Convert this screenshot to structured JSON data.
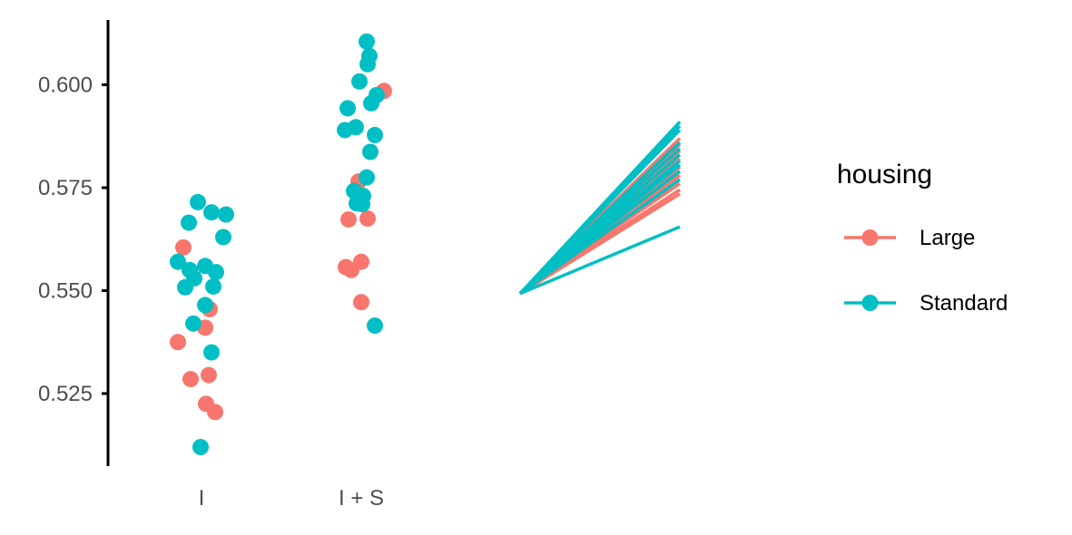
{
  "chart_data": {
    "type": "scatter",
    "categories": [
      "I",
      "I + S"
    ],
    "y_ticks": [
      "0.525",
      "0.550",
      "0.575",
      "0.600"
    ],
    "ylim": [
      0.508,
      0.615
    ],
    "grid": false,
    "legend_position": "right",
    "legend": {
      "title": "housing",
      "entries": [
        "Large",
        "Standard"
      ]
    },
    "colors": {
      "Large": "#F8766D",
      "Standard": "#00BFC4"
    },
    "points": [
      {
        "group": "I",
        "housing": "Large",
        "value": 0.5605
      },
      {
        "group": "I",
        "housing": "Large",
        "value": 0.5455
      },
      {
        "group": "I",
        "housing": "Large",
        "value": 0.541
      },
      {
        "group": "I",
        "housing": "Large",
        "value": 0.5375
      },
      {
        "group": "I",
        "housing": "Large",
        "value": 0.5295
      },
      {
        "group": "I",
        "housing": "Large",
        "value": 0.5285
      },
      {
        "group": "I",
        "housing": "Large",
        "value": 0.5225
      },
      {
        "group": "I",
        "housing": "Large",
        "value": 0.5205
      },
      {
        "group": "I",
        "housing": "Standard",
        "value": 0.5715
      },
      {
        "group": "I",
        "housing": "Standard",
        "value": 0.569
      },
      {
        "group": "I",
        "housing": "Standard",
        "value": 0.5685
      },
      {
        "group": "I",
        "housing": "Standard",
        "value": 0.5665
      },
      {
        "group": "I",
        "housing": "Standard",
        "value": 0.563
      },
      {
        "group": "I",
        "housing": "Standard",
        "value": 0.557
      },
      {
        "group": "I",
        "housing": "Standard",
        "value": 0.556
      },
      {
        "group": "I",
        "housing": "Standard",
        "value": 0.555
      },
      {
        "group": "I",
        "housing": "Standard",
        "value": 0.5545
      },
      {
        "group": "I",
        "housing": "Standard",
        "value": 0.553
      },
      {
        "group": "I",
        "housing": "Standard",
        "value": 0.551
      },
      {
        "group": "I",
        "housing": "Standard",
        "value": 0.5508
      },
      {
        "group": "I",
        "housing": "Standard",
        "value": 0.5465
      },
      {
        "group": "I",
        "housing": "Standard",
        "value": 0.542
      },
      {
        "group": "I",
        "housing": "Standard",
        "value": 0.535
      },
      {
        "group": "I",
        "housing": "Standard",
        "value": 0.512
      },
      {
        "group": "I + S",
        "housing": "Large",
        "value": 0.5985
      },
      {
        "group": "I + S",
        "housing": "Large",
        "value": 0.5765
      },
      {
        "group": "I + S",
        "housing": "Large",
        "value": 0.5675
      },
      {
        "group": "I + S",
        "housing": "Large",
        "value": 0.5673
      },
      {
        "group": "I + S",
        "housing": "Large",
        "value": 0.557
      },
      {
        "group": "I + S",
        "housing": "Large",
        "value": 0.5557
      },
      {
        "group": "I + S",
        "housing": "Large",
        "value": 0.555
      },
      {
        "group": "I + S",
        "housing": "Large",
        "value": 0.5472
      },
      {
        "group": "I + S",
        "housing": "Standard",
        "value": 0.6105
      },
      {
        "group": "I + S",
        "housing": "Standard",
        "value": 0.607
      },
      {
        "group": "I + S",
        "housing": "Standard",
        "value": 0.605
      },
      {
        "group": "I + S",
        "housing": "Standard",
        "value": 0.6008
      },
      {
        "group": "I + S",
        "housing": "Standard",
        "value": 0.5975
      },
      {
        "group": "I + S",
        "housing": "Standard",
        "value": 0.5955
      },
      {
        "group": "I + S",
        "housing": "Standard",
        "value": 0.5943
      },
      {
        "group": "I + S",
        "housing": "Standard",
        "value": 0.5897
      },
      {
        "group": "I + S",
        "housing": "Standard",
        "value": 0.589
      },
      {
        "group": "I + S",
        "housing": "Standard",
        "value": 0.5878
      },
      {
        "group": "I + S",
        "housing": "Standard",
        "value": 0.5837
      },
      {
        "group": "I + S",
        "housing": "Standard",
        "value": 0.5775
      },
      {
        "group": "I + S",
        "housing": "Standard",
        "value": 0.5742
      },
      {
        "group": "I + S",
        "housing": "Standard",
        "value": 0.573
      },
      {
        "group": "I + S",
        "housing": "Standard",
        "value": 0.5712
      },
      {
        "group": "I + S",
        "housing": "Standard",
        "value": 0.571
      },
      {
        "group": "I + S",
        "housing": "Standard",
        "value": 0.5415
      }
    ],
    "slope_lines": {
      "start_value": 0.5493,
      "lines": [
        {
          "housing": "Large",
          "end": 0.587
        },
        {
          "housing": "Large",
          "end": 0.5855
        },
        {
          "housing": "Large",
          "end": 0.584
        },
        {
          "housing": "Large",
          "end": 0.582
        },
        {
          "housing": "Large",
          "end": 0.58
        },
        {
          "housing": "Large",
          "end": 0.579
        },
        {
          "housing": "Large",
          "end": 0.578
        },
        {
          "housing": "Large",
          "end": 0.576
        },
        {
          "housing": "Large",
          "end": 0.5745
        },
        {
          "housing": "Large",
          "end": 0.5735
        },
        {
          "housing": "Standard",
          "end": 0.591
        },
        {
          "housing": "Standard",
          "end": 0.59
        },
        {
          "housing": "Standard",
          "end": 0.589
        },
        {
          "housing": "Standard",
          "end": 0.586
        },
        {
          "housing": "Standard",
          "end": 0.5845
        },
        {
          "housing": "Standard",
          "end": 0.583
        },
        {
          "housing": "Standard",
          "end": 0.5815
        },
        {
          "housing": "Standard",
          "end": 0.5805
        },
        {
          "housing": "Standard",
          "end": 0.579
        },
        {
          "housing": "Standard",
          "end": 0.577
        },
        {
          "housing": "Standard",
          "end": 0.5655
        }
      ]
    }
  }
}
